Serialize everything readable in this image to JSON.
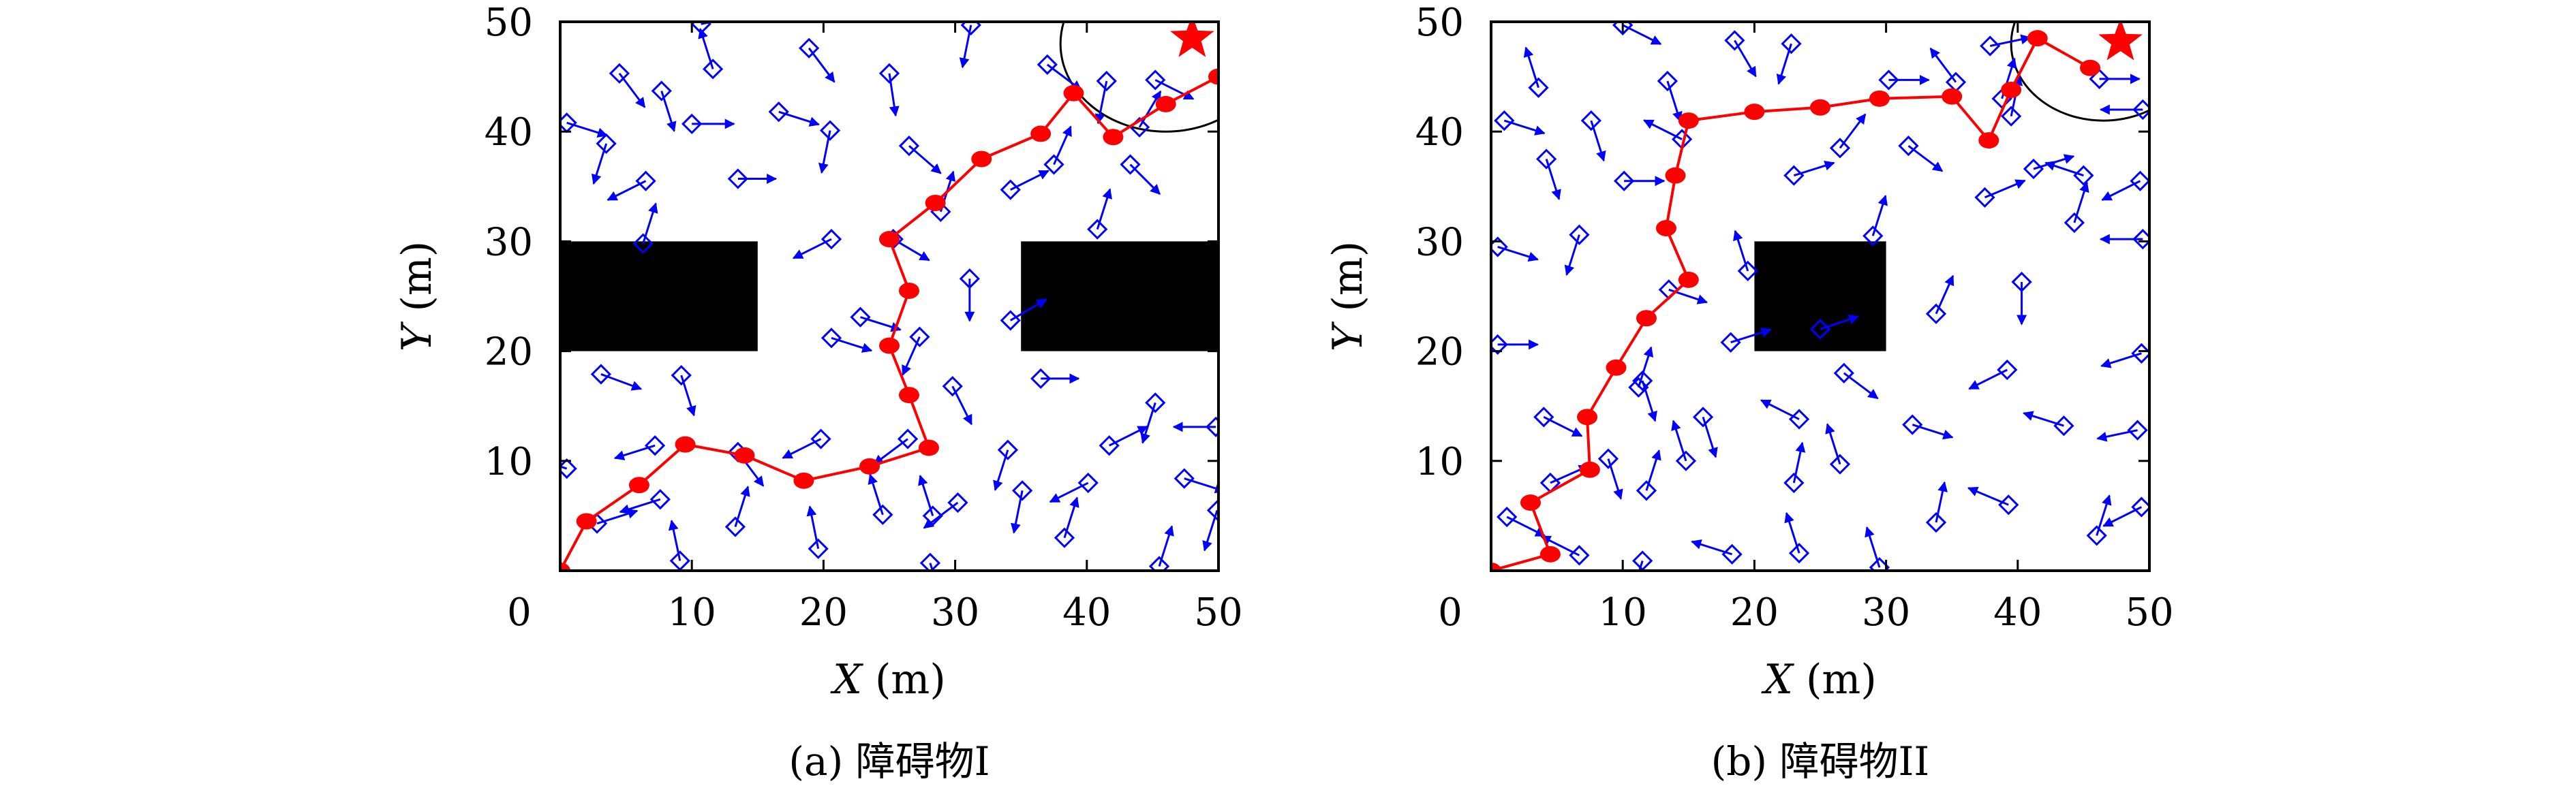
{
  "chart_data": [
    {
      "type": "scatter",
      "title": "",
      "caption": "(a) 障碍物I",
      "xlabel_var": "X",
      "xlabel_unit": "(m)",
      "ylabel_var": "Y",
      "ylabel_unit": "(m)",
      "xlim": [
        0,
        50
      ],
      "ylim": [
        0,
        50
      ],
      "x_ticks": [
        0,
        10,
        20,
        30,
        40,
        50
      ],
      "y_ticks": [
        10,
        20,
        30,
        40,
        50
      ],
      "grid": false,
      "legend": "none",
      "obstacles": [
        {
          "x0": 0,
          "x1": 15,
          "y0": 20,
          "y1": 30
        },
        {
          "x0": 35,
          "x1": 50,
          "y0": 20,
          "y1": 30
        }
      ],
      "goal": {
        "x": 48,
        "y": 48.5
      },
      "goal_region": {
        "cx": 46,
        "cy": 48,
        "r": 8
      },
      "path": [
        [
          0,
          0
        ],
        [
          2,
          4.5
        ],
        [
          6,
          7.8
        ],
        [
          9.5,
          11.5
        ],
        [
          14,
          10.5
        ],
        [
          18.5,
          8.2
        ],
        [
          23.5,
          9.5
        ],
        [
          28,
          11.2
        ],
        [
          26.5,
          16
        ],
        [
          25,
          20.5
        ],
        [
          26.5,
          25.5
        ],
        [
          25,
          30.2
        ],
        [
          28.5,
          33.5
        ],
        [
          32,
          37.5
        ],
        [
          36.5,
          39.8
        ],
        [
          39,
          43.5
        ],
        [
          42,
          39.5
        ],
        [
          46,
          42.5
        ],
        [
          50,
          45
        ]
      ],
      "vectors": [
        [
          4.5,
          45.3,
          0.6,
          -0.8
        ],
        [
          7.7,
          43.7,
          0.3,
          -0.95
        ],
        [
          10,
          40.7,
          1,
          0
        ],
        [
          11.6,
          45.7,
          -0.3,
          0.95
        ],
        [
          16.6,
          41.8,
          0.95,
          -0.3
        ],
        [
          18.9,
          47.6,
          0.6,
          -0.8
        ],
        [
          25,
          45.3,
          0.15,
          -1
        ],
        [
          31.2,
          49.7,
          -0.2,
          -1
        ],
        [
          37,
          46.1,
          0.8,
          -0.6
        ],
        [
          41.5,
          44.6,
          -0.2,
          -1
        ],
        [
          20.5,
          40.1,
          -0.2,
          -1
        ],
        [
          26.5,
          38.7,
          0.75,
          -0.65
        ],
        [
          34.2,
          34.7,
          0.9,
          0.45
        ],
        [
          37.5,
          37,
          0.4,
          0.9
        ],
        [
          43.3,
          37,
          0.7,
          -0.7
        ],
        [
          45.2,
          44.7,
          0.9,
          -0.45
        ],
        [
          44,
          40.4,
          0.5,
          0.85
        ],
        [
          0.5,
          40.8,
          0.95,
          -0.3
        ],
        [
          3.5,
          38.9,
          -0.3,
          -0.95
        ],
        [
          6.5,
          35.5,
          -0.9,
          -0.45
        ],
        [
          13.5,
          35.7,
          0.9,
          0
        ],
        [
          20.6,
          30.2,
          -0.9,
          -0.45
        ],
        [
          25.3,
          30.2,
          0.85,
          -0.5
        ],
        [
          28.9,
          32.7,
          0.3,
          0.95
        ],
        [
          31.1,
          26.6,
          0,
          -1
        ],
        [
          34.2,
          22.8,
          0.85,
          0.5
        ],
        [
          40.8,
          31.1,
          0.3,
          0.95
        ],
        [
          36.5,
          17.5,
          0.9,
          0
        ],
        [
          20.6,
          21.2,
          0.95,
          -0.3
        ],
        [
          27.3,
          21.3,
          -0.4,
          -0.9
        ],
        [
          22.8,
          23.1,
          0.95,
          -0.3
        ],
        [
          29.8,
          16.8,
          0.45,
          -0.9
        ],
        [
          3.1,
          17.9,
          0.95,
          -0.35
        ],
        [
          9.2,
          17.8,
          0.3,
          -0.95
        ],
        [
          7.2,
          11.4,
          -0.95,
          -0.3
        ],
        [
          13.5,
          10.8,
          0.6,
          -0.8
        ],
        [
          19.8,
          12,
          -0.9,
          -0.45
        ],
        [
          26.4,
          12,
          -0.8,
          -0.6
        ],
        [
          34,
          11,
          -0.3,
          -0.95
        ],
        [
          41.7,
          11.4,
          0.9,
          0.45
        ],
        [
          45.2,
          15.3,
          -0.3,
          -0.95
        ],
        [
          49.8,
          13.1,
          -1,
          0
        ],
        [
          47.4,
          8.4,
          0.95,
          -0.3
        ],
        [
          40.1,
          8,
          -0.9,
          -0.45
        ],
        [
          35.1,
          7.3,
          -0.2,
          -1
        ],
        [
          30.2,
          6.2,
          -0.8,
          -0.6
        ],
        [
          24.5,
          5.1,
          -0.3,
          0.95
        ],
        [
          19.6,
          2,
          -0.2,
          1
        ],
        [
          13.3,
          4,
          0.3,
          0.95
        ],
        [
          7.6,
          6.5,
          -0.95,
          -0.3
        ],
        [
          2.8,
          4.3,
          0.95,
          0.3
        ],
        [
          9.1,
          0.9,
          -0.2,
          0.95
        ],
        [
          28.1,
          0.7,
          0.3,
          -0.95
        ],
        [
          38.3,
          3,
          0.3,
          0.95
        ],
        [
          45.5,
          0.4,
          0.3,
          0.95
        ],
        [
          49.9,
          5.5,
          -0.3,
          -0.95
        ],
        [
          0.5,
          9.3,
          -0.95,
          0.3
        ],
        [
          10.7,
          49.8,
          0.95,
          0.2
        ],
        [
          28.3,
          5,
          -0.3,
          0.95
        ],
        [
          6.3,
          29.8,
          0.3,
          0.95
        ]
      ]
    },
    {
      "type": "scatter",
      "title": "",
      "caption": "(b) 障碍物II",
      "xlabel_var": "X",
      "xlabel_unit": "(m)",
      "ylabel_var": "Y",
      "ylabel_unit": "(m)",
      "xlim": [
        0,
        50
      ],
      "ylim": [
        0,
        50
      ],
      "x_ticks": [
        0,
        10,
        20,
        30,
        40,
        50
      ],
      "y_ticks": [
        10,
        20,
        30,
        40,
        50
      ],
      "grid": false,
      "legend": "none",
      "obstacles": [
        {
          "x0": 20,
          "x1": 30,
          "y0": 20,
          "y1": 30
        }
      ],
      "goal": {
        "x": 47.8,
        "y": 48.2
      },
      "goal_region": {
        "cx": 46.5,
        "cy": 48,
        "r": 7
      },
      "path": [
        [
          0,
          0
        ],
        [
          4.5,
          1.5
        ],
        [
          3,
          6.2
        ],
        [
          7.5,
          9.2
        ],
        [
          7.3,
          14
        ],
        [
          9.5,
          18.5
        ],
        [
          11.8,
          23
        ],
        [
          15,
          26.5
        ],
        [
          13.3,
          31.2
        ],
        [
          14,
          36
        ],
        [
          15,
          41
        ],
        [
          20,
          41.8
        ],
        [
          25,
          42.2
        ],
        [
          29.5,
          43
        ],
        [
          35,
          43.2
        ],
        [
          37.8,
          39.2
        ],
        [
          39.5,
          43.8
        ],
        [
          41.5,
          48.5
        ],
        [
          45.5,
          45.8
        ]
      ],
      "vectors": [
        [
          1,
          41,
          0.95,
          -0.3
        ],
        [
          4.2,
          37.5,
          0.3,
          -0.95
        ],
        [
          7.6,
          41,
          0.3,
          -0.95
        ],
        [
          10.1,
          35.5,
          0.95,
          0
        ],
        [
          13.4,
          44.6,
          0.3,
          -0.95
        ],
        [
          14.5,
          39.3,
          -0.9,
          0.45
        ],
        [
          18.5,
          48.3,
          0.5,
          -0.85
        ],
        [
          22.8,
          48,
          -0.3,
          -0.95
        ],
        [
          26.5,
          38.5,
          0.6,
          0.8
        ],
        [
          23,
          36,
          0.95,
          0.3
        ],
        [
          30.2,
          44.7,
          0.95,
          0
        ],
        [
          31.7,
          38.7,
          0.8,
          -0.6
        ],
        [
          35.3,
          44.5,
          -0.6,
          0.8
        ],
        [
          37.9,
          47.8,
          0.95,
          0.2
        ],
        [
          39.5,
          41.4,
          0.2,
          0.95
        ],
        [
          46.2,
          44.8,
          0.95,
          0
        ],
        [
          49.5,
          42,
          -1,
          0
        ],
        [
          49.3,
          35.5,
          -0.9,
          -0.45
        ],
        [
          49.5,
          30.2,
          -1,
          0
        ],
        [
          44.3,
          31.7,
          0.3,
          0.95
        ],
        [
          41.2,
          36.6,
          0.95,
          0.3
        ],
        [
          37.5,
          34,
          0.95,
          0.4
        ],
        [
          33.8,
          23.4,
          0.4,
          0.9
        ],
        [
          40.3,
          26.3,
          0,
          -1
        ],
        [
          49.4,
          19.8,
          -0.95,
          -0.3
        ],
        [
          49.1,
          12.8,
          -0.95,
          -0.2
        ],
        [
          43.5,
          13.2,
          -0.95,
          0.3
        ],
        [
          46,
          3.2,
          0.3,
          0.95
        ],
        [
          49.4,
          5.8,
          -0.9,
          -0.45
        ],
        [
          39.3,
          6,
          -0.95,
          0.4
        ],
        [
          33.8,
          4.4,
          0.2,
          0.95
        ],
        [
          29.5,
          0.3,
          -0.3,
          0.95
        ],
        [
          26.5,
          9.7,
          -0.3,
          0.95
        ],
        [
          32,
          13.3,
          0.95,
          -0.3
        ],
        [
          26.8,
          18,
          0.8,
          -0.6
        ],
        [
          23.4,
          13.8,
          -0.9,
          0.45
        ],
        [
          23,
          8,
          0.2,
          0.95
        ],
        [
          23.4,
          1.6,
          -0.3,
          0.95
        ],
        [
          18.3,
          1.5,
          -0.95,
          0.3
        ],
        [
          18.2,
          20.8,
          0.95,
          0.3
        ],
        [
          13.5,
          25.6,
          0.9,
          -0.3
        ],
        [
          11.2,
          16.7,
          0.3,
          0.95
        ],
        [
          8.9,
          10.2,
          0.3,
          -0.95
        ],
        [
          4.5,
          8,
          0.9,
          0.4
        ],
        [
          4,
          14,
          0.9,
          -0.45
        ],
        [
          1.2,
          4.9,
          0.9,
          -0.45
        ],
        [
          6.7,
          1.4,
          -0.9,
          0.45
        ],
        [
          11.5,
          0.9,
          -0.3,
          -0.95
        ],
        [
          11.8,
          7.3,
          0.3,
          0.95
        ],
        [
          14.8,
          10,
          -0.3,
          0.95
        ],
        [
          16.1,
          14,
          0.3,
          -0.95
        ],
        [
          0.5,
          20.6,
          0.95,
          0
        ],
        [
          0.5,
          29.5,
          0.95,
          -0.3
        ],
        [
          6.7,
          30.6,
          -0.3,
          -0.95
        ],
        [
          11.5,
          17.3,
          0.3,
          -0.95
        ],
        [
          3.6,
          44,
          -0.3,
          0.95
        ],
        [
          10,
          49.7,
          0.9,
          -0.45
        ],
        [
          39.2,
          18.3,
          -0.9,
          -0.45
        ],
        [
          38.8,
          43,
          0.3,
          0.95
        ],
        [
          29,
          30.5,
          0.3,
          0.95
        ],
        [
          19.5,
          27.3,
          -0.3,
          0.95
        ],
        [
          25,
          22,
          0.9,
          0.3
        ],
        [
          45,
          36,
          -0.9,
          0.3
        ]
      ]
    }
  ],
  "colors": {
    "path": "#ff0000",
    "waypoint": "#ff0000",
    "goal": "#ff0000",
    "vector": "#0000ff",
    "marker": "#0000ff",
    "obstacle": "#000000",
    "frame": "#000000"
  }
}
